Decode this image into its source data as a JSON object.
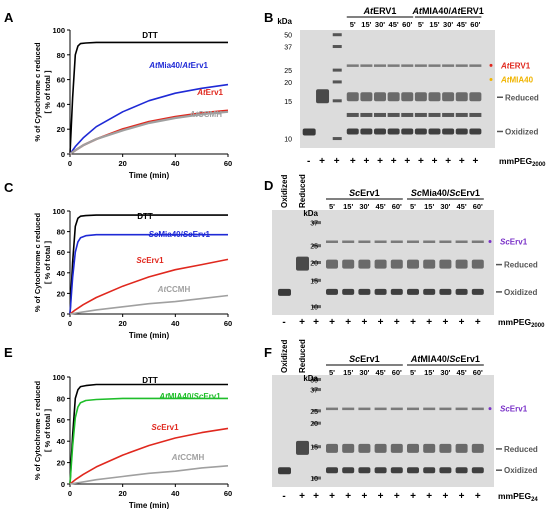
{
  "panel_letters": [
    "A",
    "B",
    "C",
    "D",
    "E",
    "F"
  ],
  "ylabel": [
    "% of Cytochrome c reduced",
    "[ % of total ]"
  ],
  "xlabel": "Time (min)",
  "chart_data": [
    {
      "panel": "A",
      "type": "line",
      "xlabel": "Time (min)",
      "ylabel": "% of Cytochrome c reduced [ % of total ]",
      "xlim": [
        0,
        60
      ],
      "ylim": [
        0,
        100
      ],
      "xticks": [
        0,
        20,
        40,
        60
      ],
      "yticks": [
        0,
        20,
        40,
        60,
        80,
        100
      ],
      "series": [
        {
          "name": "DTT",
          "color": "#000000",
          "x": [
            0,
            1,
            2,
            3,
            4,
            6,
            10,
            20,
            40,
            60
          ],
          "y": [
            0,
            45,
            80,
            87,
            89,
            89.5,
            90,
            90,
            90,
            90
          ]
        },
        {
          "name": "AtMia40/AtErv1",
          "color": "#1f2ad6",
          "x": [
            0,
            2,
            5,
            10,
            20,
            30,
            40,
            50,
            60
          ],
          "y": [
            0,
            6,
            13,
            22,
            34,
            43,
            49,
            53,
            56
          ]
        },
        {
          "name": "AtErv1",
          "color": "#e0281e",
          "x": [
            0,
            2,
            5,
            10,
            20,
            30,
            40,
            50,
            60
          ],
          "y": [
            0,
            3,
            7,
            12,
            20,
            26,
            30,
            33,
            35
          ]
        },
        {
          "name": "AtCCMH",
          "color": "#a0a0a0",
          "x": [
            0,
            2,
            5,
            10,
            20,
            30,
            40,
            50,
            60
          ],
          "y": [
            0,
            3,
            7,
            12,
            19,
            25,
            29,
            32,
            34
          ]
        }
      ]
    },
    {
      "panel": "C",
      "type": "line",
      "xlabel": "Time (min)",
      "ylabel": "% of Cytochrome c reduced [ % of total ]",
      "xlim": [
        0,
        60
      ],
      "ylim": [
        0,
        100
      ],
      "xticks": [
        0,
        20,
        40,
        60
      ],
      "yticks": [
        0,
        20,
        40,
        60,
        80,
        100
      ],
      "series": [
        {
          "name": "DTT",
          "color": "#000000",
          "x": [
            0,
            1,
            2,
            3,
            4,
            6,
            10,
            20,
            40,
            60
          ],
          "y": [
            0,
            50,
            85,
            93,
            95,
            95.5,
            96,
            96,
            96,
            96
          ]
        },
        {
          "name": "ScMia40/ScErv1",
          "color": "#1f2ad6",
          "x": [
            0,
            1,
            2,
            3,
            4,
            6,
            10,
            20,
            40,
            60
          ],
          "y": [
            0,
            35,
            60,
            70,
            74,
            76,
            77,
            77,
            77,
            77
          ]
        },
        {
          "name": "ScErv1",
          "color": "#e0281e",
          "x": [
            0,
            2,
            5,
            10,
            20,
            30,
            40,
            50,
            60
          ],
          "y": [
            0,
            4,
            9,
            16,
            27,
            36,
            43,
            48,
            53
          ]
        },
        {
          "name": "AtCCMH",
          "color": "#a0a0a0",
          "x": [
            0,
            5,
            10,
            20,
            30,
            40,
            50,
            60
          ],
          "y": [
            0,
            2,
            4,
            7,
            10,
            12,
            15,
            18
          ]
        }
      ]
    },
    {
      "panel": "E",
      "type": "line",
      "xlabel": "Time (min)",
      "ylabel": "% of Cytochrome c reduced [ % of total ]",
      "xlim": [
        0,
        60
      ],
      "ylim": [
        0,
        100
      ],
      "xticks": [
        0,
        20,
        40,
        60
      ],
      "yticks": [
        0,
        20,
        40,
        60,
        80,
        100
      ],
      "series": [
        {
          "name": "DTT",
          "color": "#000000",
          "x": [
            0,
            1,
            2,
            3,
            4,
            6,
            10,
            20,
            40,
            60
          ],
          "y": [
            0,
            45,
            80,
            88,
            91,
            92,
            93,
            93,
            93,
            93
          ]
        },
        {
          "name": "AtMIA40/ScErv1",
          "color": "#1fbe2a",
          "x": [
            0,
            1,
            2,
            3,
            4,
            6,
            10,
            20,
            40,
            60
          ],
          "y": [
            0,
            35,
            62,
            72,
            76,
            78,
            79,
            80,
            80,
            80
          ]
        },
        {
          "name": "ScErv1",
          "color": "#e0281e",
          "x": [
            0,
            2,
            5,
            10,
            20,
            30,
            40,
            50,
            60
          ],
          "y": [
            0,
            4,
            9,
            16,
            27,
            36,
            43,
            48,
            52
          ]
        },
        {
          "name": "AtCCMH",
          "color": "#a0a0a0",
          "x": [
            0,
            5,
            10,
            20,
            30,
            40,
            50,
            60
          ],
          "y": [
            0,
            2,
            4,
            7,
            10,
            12,
            15,
            17
          ]
        }
      ]
    }
  ],
  "gels": [
    {
      "panel": "B",
      "kda_label": "kDa",
      "markers": [
        "50",
        "37",
        "25",
        "20",
        "15",
        "10"
      ],
      "group_labels": [
        "AtERV1",
        "AtMIA40/AtERV1"
      ],
      "times": [
        "5'",
        "15'",
        "30'",
        "45'",
        "60'"
      ],
      "col_labels": [],
      "band_labels": [
        {
          "text": "AtERV1",
          "color": "#e0281e"
        },
        {
          "text": "AtMIA40",
          "color": "#f0b400"
        },
        {
          "text": "Reduced",
          "color": "#555555"
        },
        {
          "text": "Oxidized",
          "color": "#555555"
        }
      ],
      "signs": [
        "-",
        "+",
        "+",
        "+",
        "+",
        "+",
        "+",
        "+",
        "+",
        "+",
        "+",
        "+",
        "+"
      ],
      "reagent": "mmPEG",
      "reagent_sub": "2000"
    },
    {
      "panel": "D",
      "kda_label": "kDa",
      "markers": [
        "37",
        "25",
        "20",
        "15",
        "10"
      ],
      "group_labels": [
        "ScErv1",
        "ScMia40/ScErv1"
      ],
      "times": [
        "5'",
        "15'",
        "30'",
        "45'",
        "60'"
      ],
      "col_labels": [
        "Oxidized",
        "Reduced"
      ],
      "band_labels": [
        {
          "text": "ScErv1",
          "color": "#7a32c8"
        },
        {
          "text": "Reduced",
          "color": "#555555"
        },
        {
          "text": "Oxidized",
          "color": "#555555"
        }
      ],
      "signs": [
        "-",
        "+",
        "+",
        "+",
        "+",
        "+",
        "+",
        "+",
        "+",
        "+",
        "+",
        "+",
        "+"
      ],
      "reagent": "mmPEG",
      "reagent_sub": "2000"
    },
    {
      "panel": "F",
      "kda_label": "kDa",
      "markers": [
        "50",
        "37",
        "25",
        "20",
        "15",
        "10"
      ],
      "group_labels": [
        "ScErv1",
        "AtMIA40/ScErv1"
      ],
      "times": [
        "5'",
        "15'",
        "30'",
        "45'",
        "60'"
      ],
      "col_labels": [
        "Oxidized",
        "Reduced"
      ],
      "band_labels": [
        {
          "text": "ScErv1",
          "color": "#7a32c8"
        },
        {
          "text": "Reduced",
          "color": "#555555"
        },
        {
          "text": "Oxidized",
          "color": "#555555"
        }
      ],
      "signs": [
        "-",
        "+",
        "+",
        "+",
        "+",
        "+",
        "+",
        "+",
        "+",
        "+",
        "+",
        "+",
        "+"
      ],
      "reagent": "mmPEG",
      "reagent_sub": "24"
    }
  ]
}
